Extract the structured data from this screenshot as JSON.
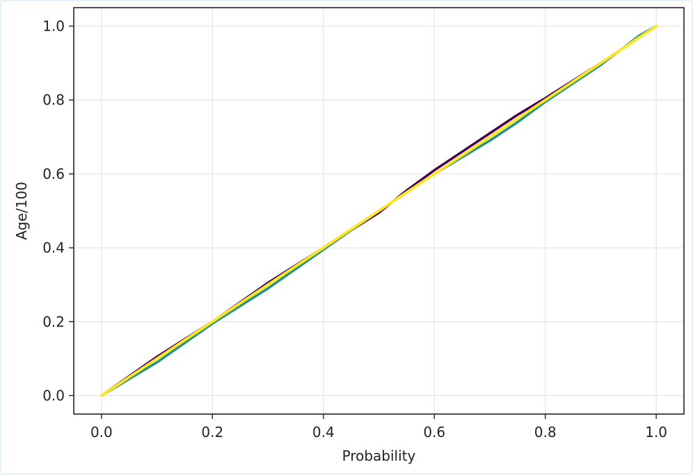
{
  "chart_data": {
    "type": "line",
    "title": "",
    "xlabel": "Probability",
    "ylabel": "Age/100",
    "xlim": [
      -0.05,
      1.05
    ],
    "ylim": [
      -0.05,
      1.05
    ],
    "xticks": [
      0.0,
      0.2,
      0.4,
      0.6,
      0.8,
      1.0
    ],
    "yticks": [
      0.0,
      0.2,
      0.4,
      0.6,
      0.8,
      1.0
    ],
    "xtick_labels": [
      "0.0",
      "0.2",
      "0.4",
      "0.6",
      "0.8",
      "1.0"
    ],
    "ytick_labels": [
      "0.0",
      "0.2",
      "0.4",
      "0.6",
      "0.8",
      "1.0"
    ],
    "grid": true,
    "legend": "none",
    "series": [
      {
        "color": "#440154",
        "x": [
          0.0,
          0.1,
          0.2,
          0.3,
          0.4,
          0.5,
          0.55,
          0.6,
          0.65,
          0.7,
          0.75,
          0.8,
          0.9,
          1.0
        ],
        "y": [
          0.0,
          0.105,
          0.2,
          0.305,
          0.4,
          0.495,
          0.555,
          0.61,
          0.66,
          0.71,
          0.76,
          0.805,
          0.9,
          1.0
        ]
      },
      {
        "color": "#21918c",
        "x": [
          0.0,
          0.1,
          0.2,
          0.3,
          0.4,
          0.5,
          0.6,
          0.7,
          0.75,
          0.8,
          0.9,
          0.97,
          1.0
        ],
        "y": [
          0.0,
          0.09,
          0.195,
          0.29,
          0.395,
          0.5,
          0.6,
          0.69,
          0.74,
          0.795,
          0.895,
          0.975,
          1.0
        ]
      },
      {
        "color": "#fde725",
        "x": [
          0.0,
          0.1,
          0.2,
          0.3,
          0.4,
          0.5,
          0.6,
          0.7,
          0.8,
          0.9,
          1.0
        ],
        "y": [
          0.0,
          0.1,
          0.2,
          0.3,
          0.4,
          0.5,
          0.6,
          0.7,
          0.8,
          0.9,
          1.0
        ]
      }
    ]
  }
}
